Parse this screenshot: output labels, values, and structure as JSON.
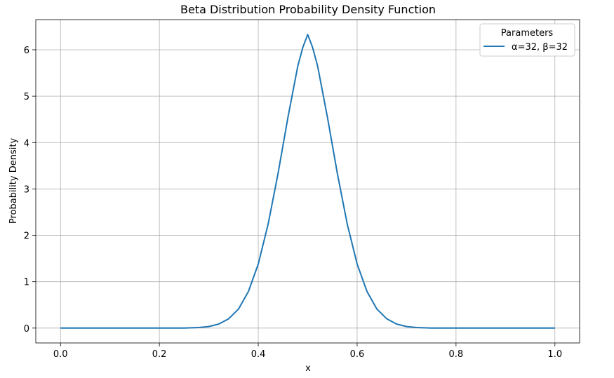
{
  "chart_data": {
    "type": "line",
    "title": "Beta Distribution Probability Density Function",
    "xlabel": "x",
    "ylabel": "Probability Density",
    "xlim": [
      -0.05,
      1.05
    ],
    "ylim": [
      -0.32,
      6.65
    ],
    "xticks": [
      0.0,
      0.2,
      0.4,
      0.6,
      0.8,
      1.0
    ],
    "xtick_labels": [
      "0.0",
      "0.2",
      "0.4",
      "0.6",
      "0.8",
      "1.0"
    ],
    "yticks": [
      0,
      1,
      2,
      3,
      4,
      5,
      6
    ],
    "ytick_labels": [
      "0",
      "1",
      "2",
      "3",
      "4",
      "5",
      "6"
    ],
    "grid": true,
    "legend": {
      "title": "Parameters",
      "placement": "top-right",
      "entries": [
        "α=32, β=32"
      ]
    },
    "series": [
      {
        "name": "α=32, β=32",
        "color": "#1f77b4",
        "x": [
          0.0,
          0.25,
          0.28,
          0.3,
          0.32,
          0.34,
          0.36,
          0.38,
          0.4,
          0.42,
          0.44,
          0.46,
          0.48,
          0.49,
          0.5,
          0.51,
          0.52,
          0.54,
          0.56,
          0.58,
          0.6,
          0.62,
          0.64,
          0.66,
          0.68,
          0.7,
          0.72,
          0.75,
          1.0
        ],
        "y": [
          0.0,
          0.002,
          0.012,
          0.034,
          0.087,
          0.2,
          0.41,
          0.79,
          1.38,
          2.24,
          3.33,
          4.54,
          5.65,
          6.05,
          6.33,
          6.05,
          5.65,
          4.54,
          3.33,
          2.24,
          1.38,
          0.79,
          0.41,
          0.2,
          0.087,
          0.034,
          0.012,
          0.002,
          0.0
        ]
      }
    ]
  }
}
